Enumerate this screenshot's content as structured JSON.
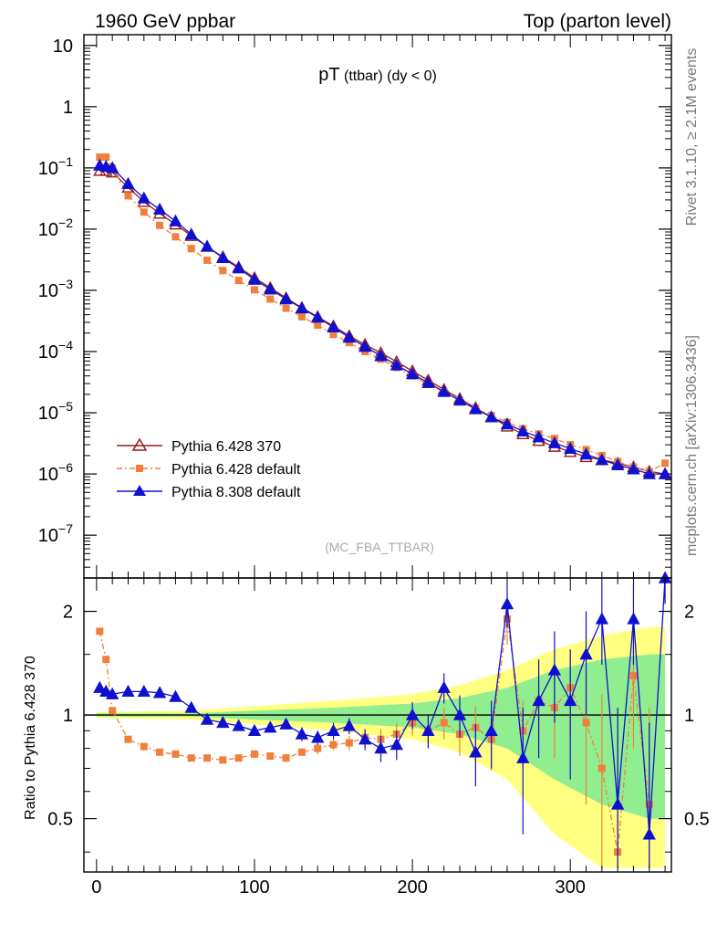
{
  "header": {
    "left": "1960 GeV ppbar",
    "right": "Top (parton level)"
  },
  "side_labels": {
    "rivet": "Rivet 3.1.10, ≥ 2.1M events",
    "mcplots": "mcplots.cern.ch [arXiv:1306.3436]"
  },
  "chart_data": [
    {
      "type": "scatter",
      "panel": "main",
      "title_main": "pT",
      "title_sub": " (ttbar)  (dy < 0)",
      "analysis_tag": "(MC_FBA_TTBAR)",
      "xlabel": "",
      "ylabel": "",
      "xlim": [
        -8,
        364
      ],
      "ylim": [
        2e-08,
        15
      ],
      "yscale": "log",
      "ytick_labels": [
        {
          "v": 10,
          "label": "10",
          "exp": ""
        },
        {
          "v": 1,
          "label": "1",
          "exp": ""
        },
        {
          "v": 0.1,
          "label": "10",
          "exp": "−1"
        },
        {
          "v": 0.01,
          "label": "10",
          "exp": "−2"
        },
        {
          "v": 0.001,
          "label": "10",
          "exp": "−3"
        },
        {
          "v": 0.0001,
          "label": "10",
          "exp": "−4"
        },
        {
          "v": 1e-05,
          "label": "10",
          "exp": "−5"
        },
        {
          "v": 1e-06,
          "label": "10",
          "exp": "−6"
        },
        {
          "v": 1e-07,
          "label": "10",
          "exp": "−7"
        }
      ],
      "legend": {
        "placement": "bottom-left"
      },
      "series": [
        {
          "name": "Pythia 6.428 370",
          "color": "#9a1b1b",
          "marker": "triangle-open",
          "x": [
            2,
            6,
            10,
            20,
            30,
            40,
            50,
            60,
            70,
            80,
            90,
            100,
            110,
            120,
            130,
            140,
            150,
            160,
            170,
            180,
            190,
            200,
            210,
            220,
            230,
            240,
            250,
            260,
            270,
            280,
            290,
            300,
            310,
            320,
            330,
            340,
            350,
            360
          ],
          "y": [
            0.09,
            0.09,
            0.085,
            0.048,
            0.028,
            0.018,
            0.012,
            0.0078,
            0.0052,
            0.0035,
            0.0024,
            0.0016,
            0.0011,
            0.00075,
            0.00052,
            0.00037,
            0.00026,
            0.00018,
            0.00013,
            9.5e-05,
            6.8e-05,
            4.8e-05,
            3.4e-05,
            2.4e-05,
            1.7e-05,
            1.2e-05,
            8.5e-06,
            6e-06,
            4.5e-06,
            3.5e-06,
            2.8e-06,
            2.3e-06,
            1.9e-06,
            1.7e-06,
            1.5e-06,
            1.3e-06,
            1.1e-06,
            1e-06
          ]
        },
        {
          "name": "Pythia 6.428 default",
          "color": "#f07f3c",
          "marker": "square",
          "x": [
            2,
            6,
            10,
            20,
            30,
            40,
            50,
            60,
            70,
            80,
            90,
            100,
            110,
            120,
            130,
            140,
            150,
            160,
            170,
            180,
            190,
            200,
            210,
            220,
            230,
            240,
            250,
            260,
            270,
            280,
            290,
            300,
            310,
            320,
            330,
            340,
            350,
            360
          ],
          "y": [
            0.15,
            0.15,
            0.1,
            0.035,
            0.019,
            0.0115,
            0.0075,
            0.0048,
            0.0031,
            0.0021,
            0.00145,
            0.00102,
            0.00072,
            0.00051,
            0.00037,
            0.00027,
            0.00019,
            0.00014,
            0.0001,
            7.5e-05,
            5.5e-05,
            4e-05,
            2.9e-05,
            2.2e-05,
            1.6e-05,
            1.2e-05,
            9e-06,
            7e-06,
            5.5e-06,
            4.5e-06,
            3.8e-06,
            3e-06,
            2.5e-06,
            2e-06,
            1.6e-06,
            1.3e-06,
            1.1e-06,
            1.5e-06
          ]
        },
        {
          "name": "Pythia 8.308 default",
          "color": "#1010d0",
          "marker": "triangle-filled",
          "x": [
            2,
            6,
            10,
            20,
            30,
            40,
            50,
            60,
            70,
            80,
            90,
            100,
            110,
            120,
            130,
            140,
            150,
            160,
            170,
            180,
            190,
            200,
            210,
            220,
            230,
            240,
            250,
            260,
            270,
            280,
            290,
            300,
            310,
            320,
            330,
            340,
            350,
            360
          ],
          "y": [
            0.11,
            0.105,
            0.1,
            0.055,
            0.032,
            0.021,
            0.0135,
            0.0082,
            0.0052,
            0.0034,
            0.0023,
            0.0015,
            0.00104,
            0.00072,
            0.00051,
            0.00036,
            0.00025,
            0.00017,
            0.00012,
            8.5e-05,
            6e-05,
            4.3e-05,
            3.1e-05,
            2.2e-05,
            1.6e-05,
            1.15e-05,
            8.5e-06,
            6.5e-06,
            5e-06,
            4e-06,
            3.2e-06,
            2.6e-06,
            2.1e-06,
            1.7e-06,
            1.4e-06,
            1.2e-06,
            1e-06,
            1e-06
          ]
        }
      ]
    },
    {
      "type": "scatter",
      "panel": "ratio",
      "ylabel": "Ratio to Pythia 6.428 370",
      "xlim": [
        -8,
        364
      ],
      "ylim": [
        0.35,
        2.5
      ],
      "yscale": "log",
      "reference_line": 1,
      "xticks": [
        0,
        100,
        200,
        300
      ],
      "yticks": [
        0.5,
        1,
        2
      ],
      "uncertainty_band": {
        "x": [
          0,
          60,
          100,
          150,
          200,
          230,
          260,
          290,
          320,
          350,
          360
        ],
        "stat_halfwidth": [
          0.01,
          0.01,
          0.03,
          0.05,
          0.08,
          0.12,
          0.2,
          0.35,
          0.45,
          0.5,
          0.5
        ],
        "total_halfwidth": [
          0.02,
          0.03,
          0.06,
          0.1,
          0.15,
          0.22,
          0.35,
          0.55,
          0.7,
          0.8,
          0.8
        ],
        "stat_color": "#90ee90",
        "total_color": "#ffff80"
      },
      "series": [
        {
          "name": "Pythia 6.428 default",
          "color": "#f07f3c",
          "marker": "square",
          "x": [
            2,
            6,
            10,
            20,
            30,
            40,
            50,
            60,
            70,
            80,
            90,
            100,
            110,
            120,
            130,
            140,
            150,
            160,
            170,
            180,
            190,
            200,
            210,
            220,
            230,
            240,
            250,
            260,
            270,
            280,
            290,
            300,
            310,
            320,
            330,
            340,
            350
          ],
          "y": [
            1.75,
            1.45,
            1.03,
            0.85,
            0.81,
            0.78,
            0.77,
            0.75,
            0.75,
            0.74,
            0.75,
            0.77,
            0.76,
            0.75,
            0.78,
            0.8,
            0.82,
            0.83,
            0.86,
            0.85,
            0.88,
            0.95,
            0.9,
            0.95,
            0.88,
            0.92,
            0.85,
            1.9,
            0.9,
            1.1,
            1.05,
            1.2,
            0.95,
            0.7,
            0.4,
            1.3,
            0.55
          ],
          "err": [
            0.02,
            0.02,
            0.01,
            0.01,
            0.01,
            0.01,
            0.01,
            0.01,
            0.01,
            0.01,
            0.01,
            0.02,
            0.02,
            0.02,
            0.02,
            0.03,
            0.03,
            0.04,
            0.05,
            0.06,
            0.07,
            0.08,
            0.09,
            0.1,
            0.12,
            0.14,
            0.16,
            0.3,
            0.2,
            0.25,
            0.3,
            0.35,
            0.4,
            0.45,
            0.5,
            0.5,
            0.5
          ]
        },
        {
          "name": "Pythia 8.308 default",
          "color": "#1010d0",
          "marker": "triangle-filled",
          "x": [
            2,
            6,
            10,
            20,
            30,
            40,
            50,
            60,
            70,
            80,
            90,
            100,
            110,
            120,
            130,
            140,
            150,
            160,
            170,
            180,
            190,
            200,
            210,
            220,
            230,
            240,
            250,
            260,
            270,
            280,
            290,
            300,
            310,
            320,
            330,
            340,
            350,
            360
          ],
          "y": [
            1.2,
            1.17,
            1.15,
            1.17,
            1.17,
            1.16,
            1.13,
            1.05,
            0.97,
            0.95,
            0.93,
            0.9,
            0.92,
            0.94,
            0.88,
            0.86,
            0.9,
            0.93,
            0.85,
            0.8,
            0.82,
            1.0,
            0.9,
            1.2,
            1.0,
            0.78,
            0.9,
            2.1,
            0.75,
            1.1,
            1.35,
            1.1,
            1.5,
            1.9,
            0.55,
            1.9,
            0.45,
            2.6
          ],
          "err": [
            0.02,
            0.02,
            0.02,
            0.02,
            0.02,
            0.02,
            0.02,
            0.02,
            0.02,
            0.02,
            0.02,
            0.02,
            0.03,
            0.03,
            0.04,
            0.04,
            0.05,
            0.05,
            0.06,
            0.07,
            0.08,
            0.09,
            0.1,
            0.12,
            0.14,
            0.16,
            0.2,
            0.3,
            0.3,
            0.35,
            0.4,
            0.45,
            0.5,
            0.5,
            0.5,
            0.5,
            0.5,
            0.5
          ]
        }
      ]
    }
  ]
}
